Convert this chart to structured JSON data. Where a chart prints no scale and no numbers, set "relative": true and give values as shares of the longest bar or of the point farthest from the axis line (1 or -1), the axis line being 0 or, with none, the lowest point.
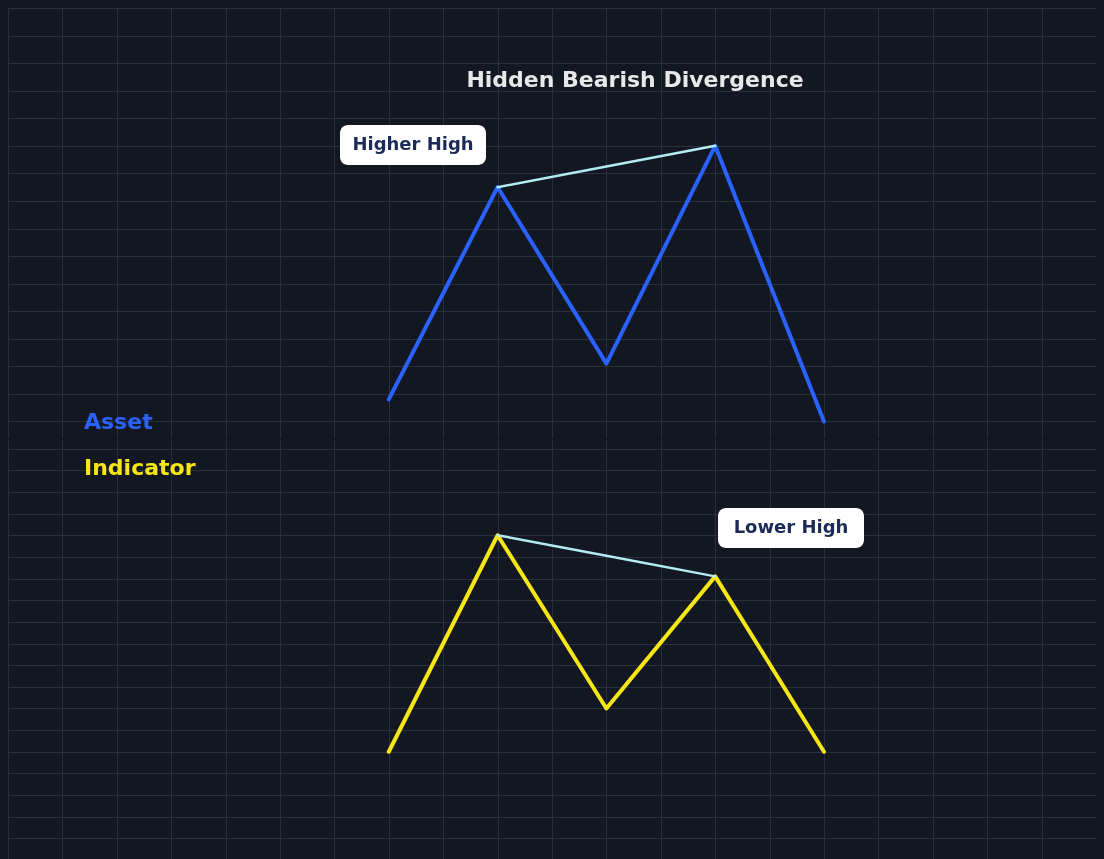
{
  "chart_data": [
    {
      "type": "line",
      "title": "Hidden Bearish Divergence",
      "relative": true,
      "categories": [
        null,
        null,
        null,
        null,
        null,
        null,
        null,
        null,
        null,
        null
      ],
      "grid": true,
      "series": [
        {
          "name": "Asset",
          "color": "#2962ff",
          "values": [
            null,
            null,
            null,
            0.08,
            0.85,
            0.21,
            1,
            0,
            null,
            null
          ]
        },
        {
          "color": "#b2ebf2",
          "values": [
            null,
            null,
            null,
            null,
            0.85,
            0.925,
            1,
            null,
            null,
            null
          ]
        }
      ],
      "annotations": [
        "Higher High"
      ]
    },
    {
      "type": "line",
      "relative": true,
      "categories": [
        null,
        null,
        null,
        null,
        null,
        null,
        null,
        null,
        null,
        null
      ],
      "grid": true,
      "series": [
        {
          "name": "Indicator",
          "color": "#f5e614",
          "values": [
            null,
            null,
            null,
            0,
            1,
            0.2,
            0.81,
            0,
            null,
            null
          ]
        },
        {
          "color": "#b2ebf2",
          "values": [
            null,
            null,
            null,
            null,
            1,
            0.905,
            0.81,
            null,
            null,
            null
          ]
        }
      ],
      "annotations": [
        "Lower High"
      ]
    }
  ]
}
